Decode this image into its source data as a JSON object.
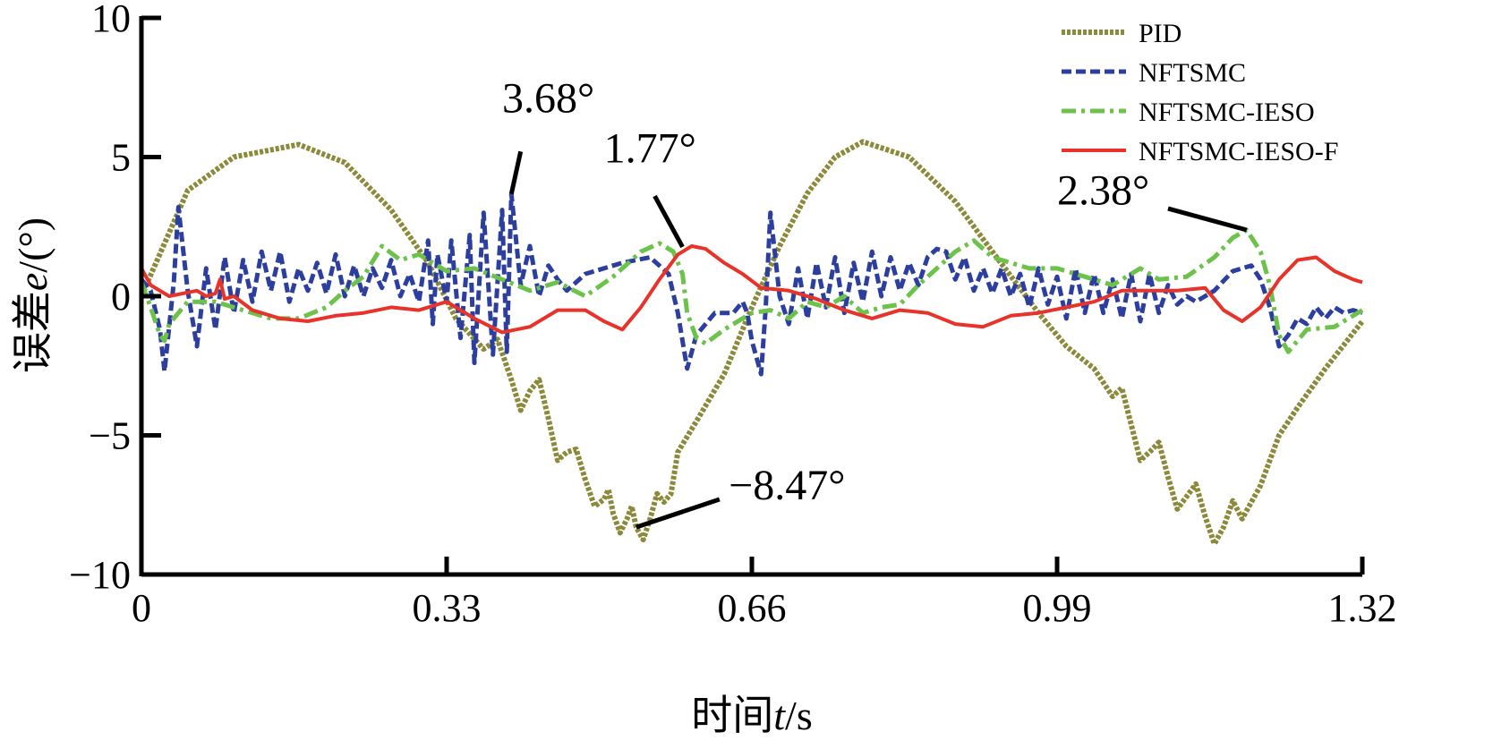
{
  "chart_data": {
    "type": "line",
    "title": "",
    "xlabel": "时间t/s",
    "ylabel": "误差e/(°)",
    "xlim": [
      0,
      1.32
    ],
    "ylim": [
      -10,
      10
    ],
    "x_ticks": [
      0,
      0.33,
      0.66,
      0.99,
      1.32
    ],
    "x_tick_labels": [
      "0",
      "0.33",
      "0.66",
      "0.99",
      "1.32"
    ],
    "y_ticks": [
      -10,
      -5,
      0,
      5,
      10
    ],
    "y_tick_labels": [
      "−10",
      "−5",
      "0",
      "5",
      "10"
    ],
    "grid": false,
    "legend_position": "top-right",
    "series": [
      {
        "name": "PID",
        "color": "#8b8a3a",
        "style": "dotted-thick",
        "points": [
          [
            0,
            0
          ],
          [
            0.05,
            3.8
          ],
          [
            0.1,
            5.0
          ],
          [
            0.17,
            5.45
          ],
          [
            0.22,
            4.8
          ],
          [
            0.27,
            3.1
          ],
          [
            0.31,
            1.2
          ],
          [
            0.34,
            -0.8
          ],
          [
            0.37,
            -1.9
          ],
          [
            0.4,
            -3.0
          ],
          [
            0.42,
            -3.4
          ],
          [
            0.44,
            -4.4
          ],
          [
            0.46,
            -5.6
          ],
          [
            0.48,
            -6.6
          ],
          [
            0.5,
            -7.3
          ],
          [
            0.51,
            -7.8
          ],
          [
            0.525,
            -8.0
          ],
          [
            0.535,
            -8.3
          ],
          [
            0.55,
            -8.0
          ],
          [
            0.565,
            -7.4
          ],
          [
            0.58,
            -5.6
          ],
          [
            0.6,
            -4.5
          ],
          [
            0.63,
            -2.8
          ],
          [
            0.66,
            -0.4
          ],
          [
            0.69,
            1.8
          ],
          [
            0.72,
            3.7
          ],
          [
            0.75,
            5.0
          ],
          [
            0.78,
            5.55
          ],
          [
            0.83,
            5.0
          ],
          [
            0.88,
            3.4
          ],
          [
            0.92,
            1.6
          ],
          [
            0.97,
            -0.6
          ],
          [
            1.0,
            -1.8
          ],
          [
            1.03,
            -2.6
          ],
          [
            1.05,
            -3.6
          ],
          [
            1.07,
            -4.6
          ],
          [
            1.09,
            -5.6
          ],
          [
            1.11,
            -6.5
          ],
          [
            1.13,
            -7.2
          ],
          [
            1.15,
            -7.9
          ],
          [
            1.17,
            -8.3
          ],
          [
            1.19,
            -8.0
          ],
          [
            1.21,
            -6.8
          ],
          [
            1.23,
            -5.0
          ],
          [
            1.25,
            -4.0
          ],
          [
            1.28,
            -2.6
          ],
          [
            1.32,
            -0.9
          ]
        ],
        "noise": [
          [
            0.36,
            0.9,
            0.46,
            0.6
          ],
          [
            0.46,
            0.6,
            0.58,
            0.9
          ],
          [
            1.04,
            0.8,
            1.19,
            0.7
          ]
        ]
      },
      {
        "name": "NFTSMC",
        "color": "#2c3f9e",
        "style": "dashed",
        "points": [
          [
            0,
            0.6
          ],
          [
            0.01,
            0.2
          ],
          [
            0.02,
            -1.2
          ],
          [
            0.025,
            -2.7
          ],
          [
            0.035,
            0.5
          ],
          [
            0.04,
            3.2
          ],
          [
            0.05,
            0.2
          ],
          [
            0.06,
            -1.8
          ],
          [
            0.07,
            1.0
          ],
          [
            0.08,
            -1.2
          ],
          [
            0.09,
            1.4
          ],
          [
            0.1,
            -0.6
          ],
          [
            0.11,
            1.3
          ],
          [
            0.12,
            -0.2
          ],
          [
            0.13,
            1.6
          ],
          [
            0.14,
            0.2
          ],
          [
            0.15,
            1.6
          ],
          [
            0.16,
            -0.2
          ],
          [
            0.17,
            1.0
          ],
          [
            0.18,
            0.2
          ],
          [
            0.19,
            1.2
          ],
          [
            0.2,
            0.1
          ],
          [
            0.21,
            1.5
          ],
          [
            0.22,
            0.0
          ],
          [
            0.23,
            1.1
          ],
          [
            0.24,
            0.0
          ],
          [
            0.25,
            1.0
          ],
          [
            0.26,
            0.3
          ],
          [
            0.27,
            1.3
          ],
          [
            0.28,
            0.0
          ],
          [
            0.29,
            0.8
          ],
          [
            0.3,
            -0.2
          ],
          [
            0.31,
            2.0
          ],
          [
            0.315,
            -1.0
          ],
          [
            0.32,
            1.5
          ],
          [
            0.33,
            -0.2
          ],
          [
            0.335,
            2.0
          ],
          [
            0.345,
            -1.5
          ],
          [
            0.355,
            2.2
          ],
          [
            0.36,
            -2.4
          ],
          [
            0.37,
            3.0
          ],
          [
            0.38,
            -2.1
          ],
          [
            0.39,
            3.1
          ],
          [
            0.395,
            -2.0
          ],
          [
            0.4,
            3.68
          ],
          [
            0.41,
            0.4
          ],
          [
            0.42,
            1.8
          ],
          [
            0.43,
            0.0
          ],
          [
            0.44,
            1.1
          ],
          [
            0.45,
            0.6
          ],
          [
            0.46,
            0.2
          ],
          [
            0.48,
            0.8
          ],
          [
            0.5,
            1.0
          ],
          [
            0.52,
            1.2
          ],
          [
            0.55,
            1.4
          ],
          [
            0.57,
            0.8
          ],
          [
            0.58,
            -0.6
          ],
          [
            0.59,
            -2.6
          ],
          [
            0.6,
            -1.4
          ],
          [
            0.62,
            -0.6
          ],
          [
            0.64,
            -0.6
          ],
          [
            0.65,
            -0.2
          ],
          [
            0.655,
            -0.6
          ],
          [
            0.66,
            -1.6
          ],
          [
            0.67,
            -2.8
          ],
          [
            0.675,
            -0.4
          ],
          [
            0.68,
            3.0
          ],
          [
            0.69,
            0.0
          ],
          [
            0.7,
            -1.0
          ],
          [
            0.71,
            1.0
          ],
          [
            0.72,
            -0.8
          ],
          [
            0.73,
            1.2
          ],
          [
            0.74,
            -0.4
          ],
          [
            0.75,
            1.4
          ],
          [
            0.76,
            -0.6
          ],
          [
            0.77,
            1.2
          ],
          [
            0.78,
            -0.2
          ],
          [
            0.79,
            1.6
          ],
          [
            0.8,
            0.0
          ],
          [
            0.81,
            1.4
          ],
          [
            0.82,
            0.2
          ],
          [
            0.83,
            1.2
          ],
          [
            0.84,
            0.4
          ],
          [
            0.85,
            1.4
          ],
          [
            0.86,
            1.7
          ],
          [
            0.87,
            1.6
          ],
          [
            0.88,
            0.6
          ],
          [
            0.89,
            1.4
          ],
          [
            0.9,
            0.2
          ],
          [
            0.91,
            1.0
          ],
          [
            0.92,
            0.1
          ],
          [
            0.93,
            1.0
          ],
          [
            0.94,
            0.0
          ],
          [
            0.95,
            0.8
          ],
          [
            0.96,
            -0.4
          ],
          [
            0.97,
            1.0
          ],
          [
            0.98,
            -0.3
          ],
          [
            0.99,
            0.7
          ],
          [
            1.0,
            -0.8
          ],
          [
            1.01,
            1.0
          ],
          [
            1.02,
            -0.6
          ],
          [
            1.03,
            0.8
          ],
          [
            1.04,
            -0.6
          ],
          [
            1.05,
            0.6
          ],
          [
            1.06,
            -0.8
          ],
          [
            1.07,
            0.8
          ],
          [
            1.08,
            -0.9
          ],
          [
            1.09,
            0.8
          ],
          [
            1.1,
            -0.6
          ],
          [
            1.11,
            0.4
          ],
          [
            1.12,
            -0.3
          ],
          [
            1.13,
            0.0
          ],
          [
            1.14,
            -0.2
          ],
          [
            1.16,
            0.2
          ],
          [
            1.18,
            0.9
          ],
          [
            1.2,
            1.1
          ],
          [
            1.21,
            0.6
          ],
          [
            1.22,
            -0.4
          ],
          [
            1.23,
            -1.8
          ],
          [
            1.24,
            -1.4
          ],
          [
            1.25,
            -0.8
          ],
          [
            1.26,
            -1.0
          ],
          [
            1.27,
            -0.4
          ],
          [
            1.28,
            -0.8
          ],
          [
            1.29,
            -0.4
          ],
          [
            1.3,
            -0.6
          ],
          [
            1.31,
            -0.5
          ],
          [
            1.32,
            -0.6
          ]
        ],
        "noise": []
      },
      {
        "name": "NFTSMC-IESO",
        "color": "#6cc24a",
        "style": "dashdot",
        "points": [
          [
            0,
            0.5
          ],
          [
            0.01,
            -0.4
          ],
          [
            0.02,
            -1.4
          ],
          [
            0.025,
            -1.6
          ],
          [
            0.03,
            -1.0
          ],
          [
            0.05,
            -0.2
          ],
          [
            0.08,
            -0.2
          ],
          [
            0.11,
            -0.5
          ],
          [
            0.14,
            -0.8
          ],
          [
            0.17,
            -0.8
          ],
          [
            0.2,
            -0.4
          ],
          [
            0.22,
            0.2
          ],
          [
            0.24,
            0.7
          ],
          [
            0.26,
            1.8
          ],
          [
            0.28,
            1.3
          ],
          [
            0.3,
            1.5
          ],
          [
            0.33,
            0.9
          ],
          [
            0.36,
            1.0
          ],
          [
            0.39,
            0.6
          ],
          [
            0.42,
            0.2
          ],
          [
            0.45,
            0.5
          ],
          [
            0.48,
            0.0
          ],
          [
            0.51,
            0.7
          ],
          [
            0.54,
            1.6
          ],
          [
            0.56,
            1.9
          ],
          [
            0.575,
            1.6
          ],
          [
            0.585,
            0.8
          ],
          [
            0.59,
            -0.6
          ],
          [
            0.6,
            -1.5
          ],
          [
            0.61,
            -1.7
          ],
          [
            0.63,
            -1.2
          ],
          [
            0.66,
            -0.6
          ],
          [
            0.68,
            -0.5
          ],
          [
            0.7,
            -0.8
          ],
          [
            0.72,
            -0.2
          ],
          [
            0.74,
            -0.4
          ],
          [
            0.76,
            0.0
          ],
          [
            0.78,
            -0.6
          ],
          [
            0.8,
            -0.4
          ],
          [
            0.82,
            -0.3
          ],
          [
            0.84,
            0.4
          ],
          [
            0.86,
            1.0
          ],
          [
            0.88,
            1.6
          ],
          [
            0.9,
            2.0
          ],
          [
            0.92,
            1.4
          ],
          [
            0.94,
            1.2
          ],
          [
            0.96,
            1.0
          ],
          [
            0.99,
            1.0
          ],
          [
            1.02,
            0.7
          ],
          [
            1.05,
            0.4
          ],
          [
            1.08,
            1.0
          ],
          [
            1.1,
            0.6
          ],
          [
            1.13,
            0.7
          ],
          [
            1.16,
            1.4
          ],
          [
            1.18,
            2.1
          ],
          [
            1.195,
            2.38
          ],
          [
            1.21,
            1.6
          ],
          [
            1.22,
            0.4
          ],
          [
            1.23,
            -1.4
          ],
          [
            1.24,
            -2.0
          ],
          [
            1.26,
            -1.2
          ],
          [
            1.29,
            -1.1
          ],
          [
            1.32,
            -0.5
          ]
        ],
        "noise": []
      },
      {
        "name": "NFTSMC-IESO-F",
        "color": "#e8332a",
        "style": "solid",
        "points": [
          [
            0,
            1.0
          ],
          [
            0.01,
            0.4
          ],
          [
            0.03,
            0.0
          ],
          [
            0.06,
            0.2
          ],
          [
            0.07,
            0.0
          ],
          [
            0.08,
            0.1
          ],
          [
            0.085,
            0.6
          ],
          [
            0.09,
            -0.1
          ],
          [
            0.1,
            0.0
          ],
          [
            0.12,
            -0.5
          ],
          [
            0.15,
            -0.8
          ],
          [
            0.18,
            -0.9
          ],
          [
            0.21,
            -0.7
          ],
          [
            0.24,
            -0.6
          ],
          [
            0.27,
            -0.4
          ],
          [
            0.3,
            -0.5
          ],
          [
            0.33,
            -0.2
          ],
          [
            0.36,
            -0.8
          ],
          [
            0.39,
            -1.3
          ],
          [
            0.42,
            -1.1
          ],
          [
            0.45,
            -0.5
          ],
          [
            0.48,
            -0.5
          ],
          [
            0.5,
            -0.9
          ],
          [
            0.52,
            -1.2
          ],
          [
            0.54,
            -0.4
          ],
          [
            0.56,
            0.6
          ],
          [
            0.58,
            1.5
          ],
          [
            0.595,
            1.8
          ],
          [
            0.61,
            1.7
          ],
          [
            0.63,
            1.2
          ],
          [
            0.65,
            0.8
          ],
          [
            0.67,
            0.3
          ],
          [
            0.7,
            0.2
          ],
          [
            0.73,
            -0.1
          ],
          [
            0.76,
            -0.5
          ],
          [
            0.79,
            -0.8
          ],
          [
            0.82,
            -0.5
          ],
          [
            0.85,
            -0.6
          ],
          [
            0.88,
            -1.0
          ],
          [
            0.91,
            -1.1
          ],
          [
            0.94,
            -0.7
          ],
          [
            0.97,
            -0.6
          ],
          [
            1.0,
            -0.4
          ],
          [
            1.03,
            -0.2
          ],
          [
            1.06,
            0.2
          ],
          [
            1.09,
            0.2
          ],
          [
            1.12,
            0.2
          ],
          [
            1.15,
            0.3
          ],
          [
            1.17,
            -0.5
          ],
          [
            1.19,
            -0.9
          ],
          [
            1.21,
            -0.4
          ],
          [
            1.23,
            0.6
          ],
          [
            1.25,
            1.3
          ],
          [
            1.27,
            1.4
          ],
          [
            1.29,
            0.9
          ],
          [
            1.31,
            0.6
          ],
          [
            1.32,
            0.5
          ]
        ],
        "noise": []
      }
    ],
    "annotations": [
      {
        "text": "3.68°",
        "point": [
          0.4,
          3.68
        ],
        "label_at": [
          0.39,
          6.6
        ],
        "elbow": [
          0.41,
          5.2
        ]
      },
      {
        "text": "1.77°",
        "point": [
          0.585,
          1.77
        ],
        "label_at": [
          0.5,
          4.8
        ],
        "elbow": [
          0.555,
          3.6
        ]
      },
      {
        "text": "−8.47°",
        "point": [
          0.535,
          -8.3
        ],
        "label_at": [
          0.635,
          -7.3
        ],
        "elbow": [
          0.625,
          -7.3
        ]
      },
      {
        "text": "2.38°",
        "point": [
          1.195,
          2.38
        ],
        "label_at": [
          0.99,
          3.3
        ],
        "elbow": [
          1.11,
          3.15
        ]
      }
    ]
  }
}
